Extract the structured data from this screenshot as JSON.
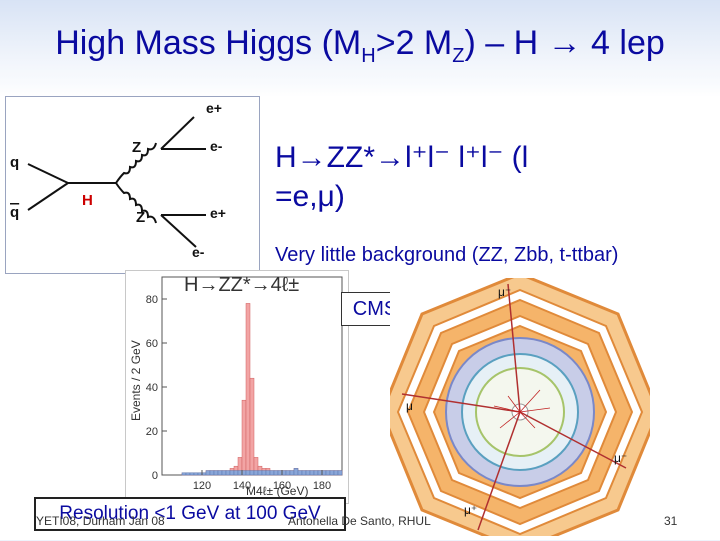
{
  "slide": {
    "title_main": "High Mass Higgs (M",
    "title_sub1": "H",
    "title_mid": ">2 M",
    "title_sub2": "Z",
    "title_end": ") – H → 4 lep"
  },
  "feynman": {
    "q": "q",
    "qbar": "q",
    "H": "H",
    "Z_top": "Z",
    "Z_bottom": "Z",
    "lep_top_plus": "e+",
    "lep_top_minus": "e-",
    "lep_bot_plus": "e+",
    "lep_bot_minus": "e-"
  },
  "text": {
    "decay_line": "H→ZZ*→l⁺l⁻      l⁺l⁻         (l",
    "lepton_types": "=e,μ)",
    "background_line": "Very little background (ZZ, Zbb, t-ttbar)",
    "cms_label": "CMS",
    "resolution": "Resolution <1 GeV at 100 GeV"
  },
  "footer": {
    "left": "YETI08, Durham Jan 08",
    "center": "Antonella De Santo, RHUL",
    "page": "31"
  },
  "chart_data": {
    "type": "bar",
    "title": "H→ZZ*→4ℓ±",
    "xlabel": "M4ℓ± (GeV)",
    "ylabel": "Events / 2 GeV",
    "xlim": [
      100,
      190
    ],
    "ylim": [
      0,
      90
    ],
    "xticks": [
      120,
      140,
      160,
      180
    ],
    "yticks": [
      0,
      20,
      40,
      60,
      80
    ],
    "bin_width": 2,
    "series": [
      {
        "x": [
          100,
          102,
          104,
          106,
          108,
          110,
          112,
          114,
          116,
          118,
          120,
          122,
          124,
          126,
          128,
          130,
          132,
          134,
          136,
          138,
          140,
          142,
          144,
          146,
          148,
          150,
          152,
          154,
          156,
          158,
          160,
          162,
          164,
          166,
          168,
          170,
          172,
          174,
          176,
          178,
          180,
          182,
          184,
          186,
          188
        ],
        "values": [
          0,
          0,
          0,
          0,
          0,
          1,
          1,
          1,
          1,
          1,
          1,
          2,
          2,
          2,
          2,
          2,
          2,
          3,
          4,
          8,
          34,
          78,
          44,
          8,
          4,
          3,
          3,
          2,
          2,
          2,
          2,
          2,
          2,
          3,
          2,
          2,
          2,
          2,
          2,
          2,
          2,
          2,
          2,
          2,
          2
        ],
        "color": "#f2a4a4"
      },
      {
        "x": [
          100,
          102,
          104,
          106,
          108,
          110,
          112,
          114,
          116,
          118,
          120,
          122,
          124,
          126,
          128,
          130,
          132,
          134,
          136,
          138,
          140,
          142,
          144,
          146,
          148,
          150,
          152,
          154,
          156,
          158,
          160,
          162,
          164,
          166,
          168,
          170,
          172,
          174,
          176,
          178,
          180,
          182,
          184,
          186,
          188
        ],
        "values": [
          0,
          0,
          0,
          0,
          0,
          1,
          1,
          1,
          1,
          1,
          1,
          2,
          2,
          2,
          2,
          2,
          2,
          2,
          2,
          2,
          2,
          2,
          2,
          2,
          2,
          2,
          2,
          2,
          2,
          2,
          2,
          2,
          2,
          3,
          2,
          2,
          2,
          2,
          2,
          2,
          2,
          2,
          2,
          2,
          2
        ],
        "color": "#8aa6d8"
      }
    ]
  },
  "event_display": {
    "muon_labels": [
      "μ⁻",
      "μ",
      "μ⁻",
      "μ⁺"
    ]
  },
  "colors": {
    "title": "#0a0aa0",
    "signal": "#f2a4a4",
    "background": "#8aa6d8",
    "calo": "#f5b46a"
  }
}
